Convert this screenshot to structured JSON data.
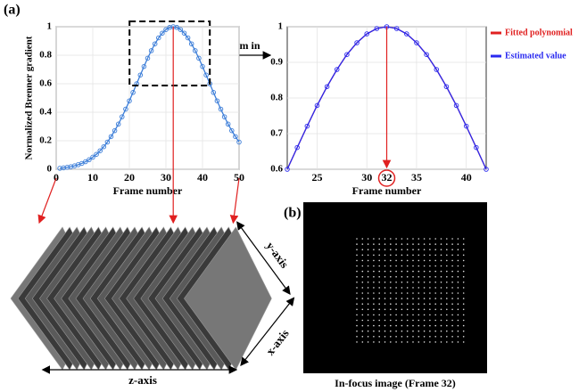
{
  "chart_data": [
    {
      "type": "line",
      "xlabel": "Frame number",
      "ylabel": "Normalized Brenner gradient",
      "x": [
        1,
        2,
        3,
        4,
        5,
        6,
        7,
        8,
        9,
        10,
        11,
        12,
        13,
        14,
        15,
        16,
        17,
        18,
        19,
        20,
        21,
        22,
        23,
        24,
        25,
        26,
        27,
        28,
        29,
        30,
        31,
        32,
        33,
        34,
        35,
        36,
        37,
        38,
        39,
        40,
        41,
        42,
        43,
        44,
        45,
        46,
        47,
        48,
        49,
        50
      ],
      "series": [
        {
          "color": "#3b7dd8",
          "values": [
            0.007,
            0.01,
            0.014,
            0.018,
            0.024,
            0.032,
            0.041,
            0.053,
            0.067,
            0.085,
            0.105,
            0.13,
            0.158,
            0.191,
            0.229,
            0.271,
            0.317,
            0.368,
            0.422,
            0.48,
            0.539,
            0.6,
            0.661,
            0.721,
            0.779,
            0.832,
            0.88,
            0.922,
            0.955,
            0.98,
            0.995,
            1,
            0.995,
            0.98,
            0.955,
            0.922,
            0.88,
            0.832,
            0.779,
            0.721,
            0.661,
            0.6,
            0.539,
            0.48,
            0.422,
            0.368,
            0.317,
            0.271,
            0.229,
            0.191
          ]
        }
      ],
      "xlim": [
        0,
        50
      ],
      "xticks": [
        0,
        10,
        20,
        30,
        40,
        50
      ],
      "ylim": [
        0,
        1
      ],
      "yticks": [
        0,
        0.2,
        0.4,
        0.6,
        0.8,
        1
      ]
    },
    {
      "type": "line",
      "xlabel": "Frame number",
      "x": [
        22,
        23,
        24,
        25,
        26,
        27,
        28,
        29,
        30,
        31,
        32,
        33,
        34,
        35,
        36,
        37,
        38,
        39,
        40,
        41,
        42
      ],
      "series": [
        {
          "name": "Fitted polynomial",
          "color": "#e02020",
          "values": [
            0.6,
            0.661,
            0.721,
            0.779,
            0.832,
            0.88,
            0.922,
            0.955,
            0.98,
            0.995,
            1,
            0.995,
            0.98,
            0.955,
            0.922,
            0.88,
            0.832,
            0.779,
            0.721,
            0.661,
            0.6
          ]
        },
        {
          "name": "Estimated value",
          "color": "#2a2af0",
          "values": [
            0.6,
            0.661,
            0.721,
            0.779,
            0.832,
            0.88,
            0.922,
            0.955,
            0.98,
            0.995,
            1,
            0.995,
            0.98,
            0.955,
            0.922,
            0.88,
            0.832,
            0.779,
            0.721,
            0.661,
            0.6
          ]
        }
      ],
      "xlim": [
        22,
        42
      ],
      "xticks": [
        25,
        30,
        32,
        35,
        40
      ],
      "ylim": [
        0.6,
        1
      ],
      "yticks": [
        0.6,
        0.7,
        0.8,
        0.9,
        1
      ]
    }
  ],
  "labels": {
    "panel_a": "(a)",
    "zoom": "Zoom in",
    "panel_b": "(b)",
    "z_axis": "z-axis",
    "y_axis": "y-axis",
    "x_axis": "x-axis",
    "caption": "In-focus image (Frame 32)"
  }
}
